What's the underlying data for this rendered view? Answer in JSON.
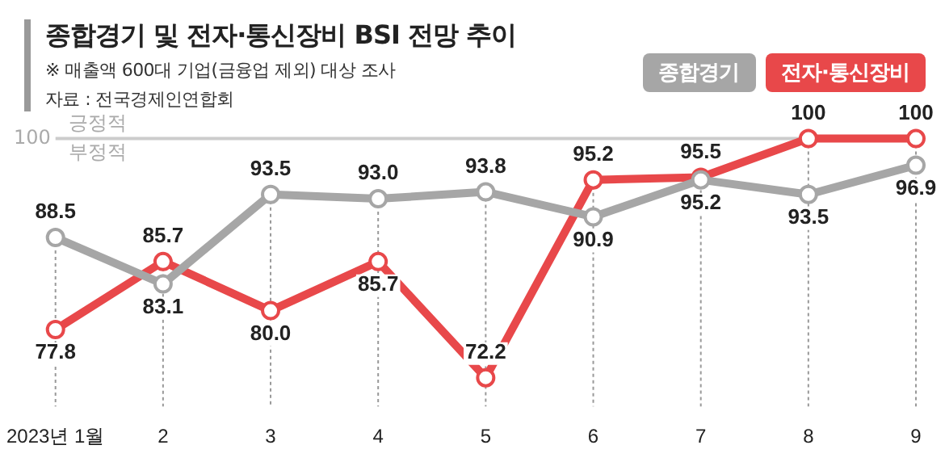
{
  "chart_data": {
    "type": "line",
    "title": "종합경기 및 전자·통신장비 BSI 전망 추이",
    "subtitle": "※ 매출액 600대 기업(금융업 제외) 대상 조사",
    "annotations": [
      "자료 : 전국경제인연합회",
      {
        "text": "긍정적",
        "y": 100
      },
      {
        "text": "부정적",
        "y": 100
      }
    ],
    "categories": [
      "2023년 1월",
      "2",
      "3",
      "4",
      "5",
      "6",
      "7",
      "8",
      "9"
    ],
    "series": [
      {
        "name": "종합경기",
        "color": "#a6a6a6",
        "values": [
          88.5,
          83.1,
          93.5,
          93.0,
          93.8,
          90.9,
          95.2,
          93.5,
          96.9
        ],
        "value_labels": [
          "88.5",
          "83.1",
          "93.5",
          "93.0",
          "93.8",
          "90.9",
          "95.2",
          "93.5",
          "96.9"
        ]
      },
      {
        "name": "전자·통신장비",
        "color": "#e8484a",
        "values": [
          77.8,
          85.7,
          80.0,
          85.7,
          72.2,
          95.2,
          95.5,
          100,
          100
        ],
        "value_labels": [
          "77.8",
          "85.7",
          "80.0",
          "85.7",
          "72.2",
          "95.2",
          "95.5",
          "100",
          "100"
        ]
      }
    ],
    "ref_lines": [
      {
        "axis": "y",
        "value": 100,
        "label": "100",
        "color": "#cccccc"
      }
    ],
    "grid": "x",
    "legend": "top right",
    "marker": "circle",
    "line_style": "solid"
  }
}
